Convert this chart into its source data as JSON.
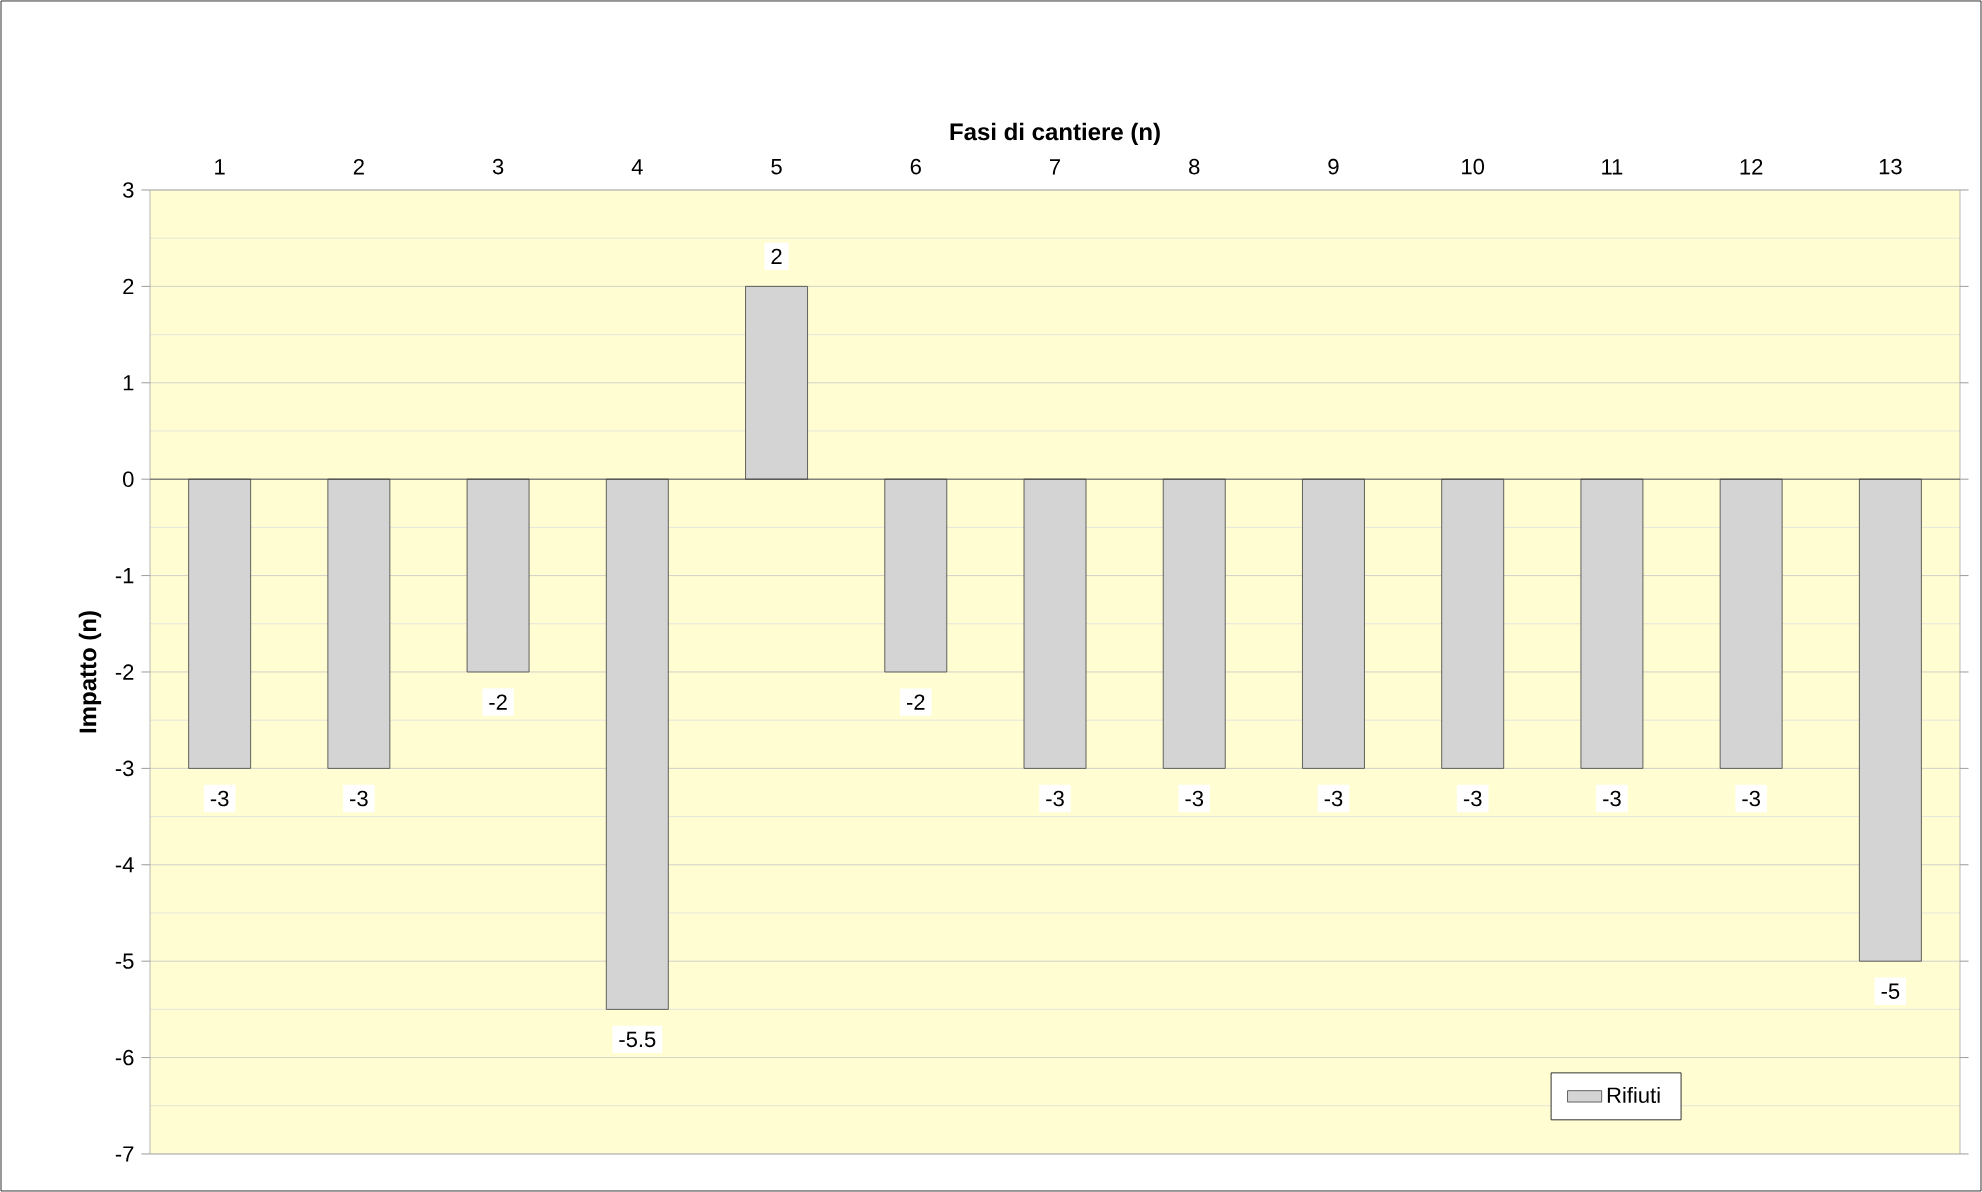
{
  "chart_data": {
    "type": "bar",
    "xlabel": "Fasi di cantiere (n)",
    "ylabel": "Impatto (n)",
    "categories": [
      "1",
      "2",
      "3",
      "4",
      "5",
      "6",
      "7",
      "8",
      "9",
      "10",
      "11",
      "12",
      "13"
    ],
    "series": [
      {
        "name": "Rifiuti",
        "color": "#d4d4d4",
        "values": [
          -3,
          -3,
          -2,
          -5.5,
          2,
          -2,
          -3,
          -3,
          -3,
          -3,
          -3,
          -3,
          -5
        ]
      }
    ],
    "ylim": [
      -7,
      3
    ],
    "yticks": [
      -7,
      -6,
      -5,
      -4,
      -3,
      -2,
      -1,
      0,
      1,
      2,
      3
    ],
    "grid": "y",
    "legend": "bottom right",
    "data_labels": true
  }
}
